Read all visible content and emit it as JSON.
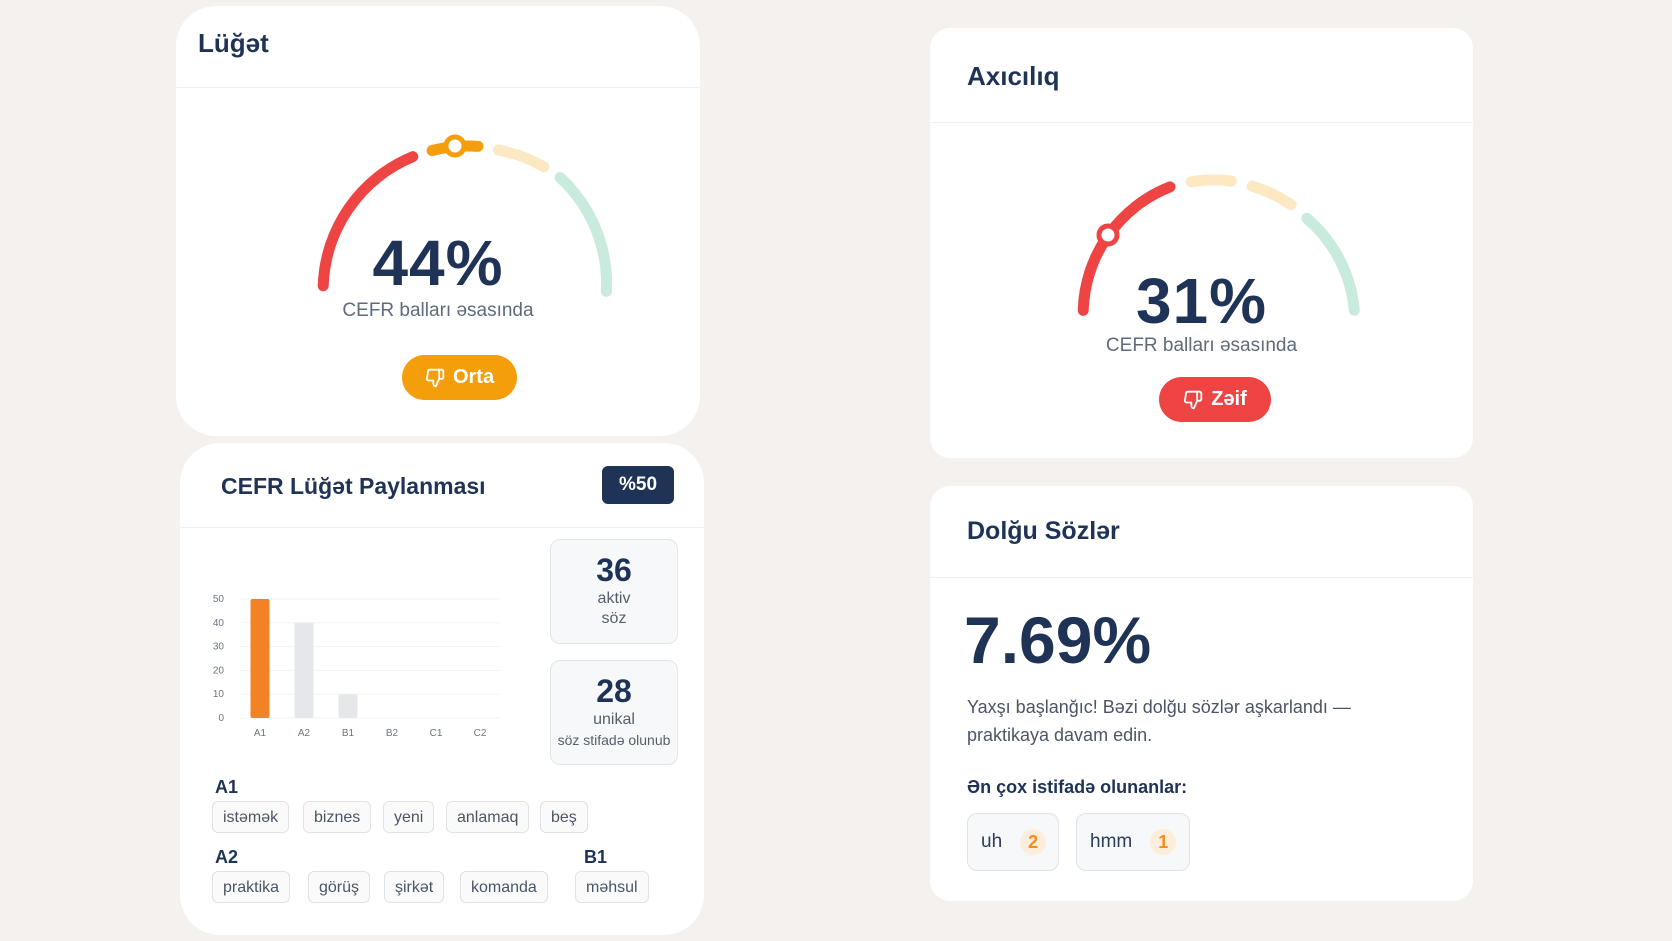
{
  "vocab": {
    "title": "Lüğət",
    "percent": "44%",
    "subtitle": "CEFR balları əsasında",
    "status": "Orta",
    "status_icon": "thumbs-down-icon",
    "colors": {
      "red": "#ef4444",
      "orange": "#f59e0b",
      "beige": "#fde8c4",
      "mint": "#c8ebdd"
    },
    "gauge_value": 0.44
  },
  "fluency": {
    "title": "Axıcılıq",
    "percent": "31%",
    "subtitle": "CEFR balları əsasında",
    "status": "Zəif",
    "status_icon": "thumbs-down-icon",
    "gauge_value": 0.31
  },
  "cefr": {
    "title": "CEFR Lüğət Paylanması",
    "badge": "%50",
    "stats": [
      {
        "value": "36",
        "line1": "aktiv",
        "line2": "söz"
      },
      {
        "value": "28",
        "line1": "unikal",
        "line2": "söz stifadə olunub"
      }
    ],
    "levels": [
      {
        "name": "A1",
        "words": [
          "istəmək",
          "biznes",
          "yeni",
          "anlamaq",
          "beş"
        ]
      },
      {
        "name": "A2",
        "words": [
          "praktika",
          "görüş",
          "şirkət",
          "komanda"
        ]
      },
      {
        "name": "B1",
        "words": [
          "məhsul"
        ]
      }
    ]
  },
  "chart_data": {
    "type": "bar",
    "categories": [
      "A1",
      "A2",
      "B1",
      "B2",
      "C1",
      "C2"
    ],
    "values": [
      50,
      40,
      10,
      0,
      0,
      0
    ],
    "ylim": [
      0,
      50
    ],
    "yticks": [
      "0",
      "10",
      "20",
      "30",
      "40",
      "50"
    ],
    "colors": [
      "#f28223",
      "#e5e7eb",
      "#e5e7eb",
      "#e5e7eb",
      "#e5e7eb",
      "#e5e7eb"
    ],
    "grid": true
  },
  "fillers": {
    "title": "Dolğu Sözlər",
    "percent": "7.69%",
    "message_line1": "Yaxşı başlanğıc! Bəzi dolğu sözlər aşkarlandı —",
    "message_line2": "praktikaya davam edin.",
    "most_used_label": "Ən çox istifadə olunanlar:",
    "items": [
      {
        "word": "uh",
        "count": "2"
      },
      {
        "word": "hmm",
        "count": "1"
      }
    ]
  }
}
